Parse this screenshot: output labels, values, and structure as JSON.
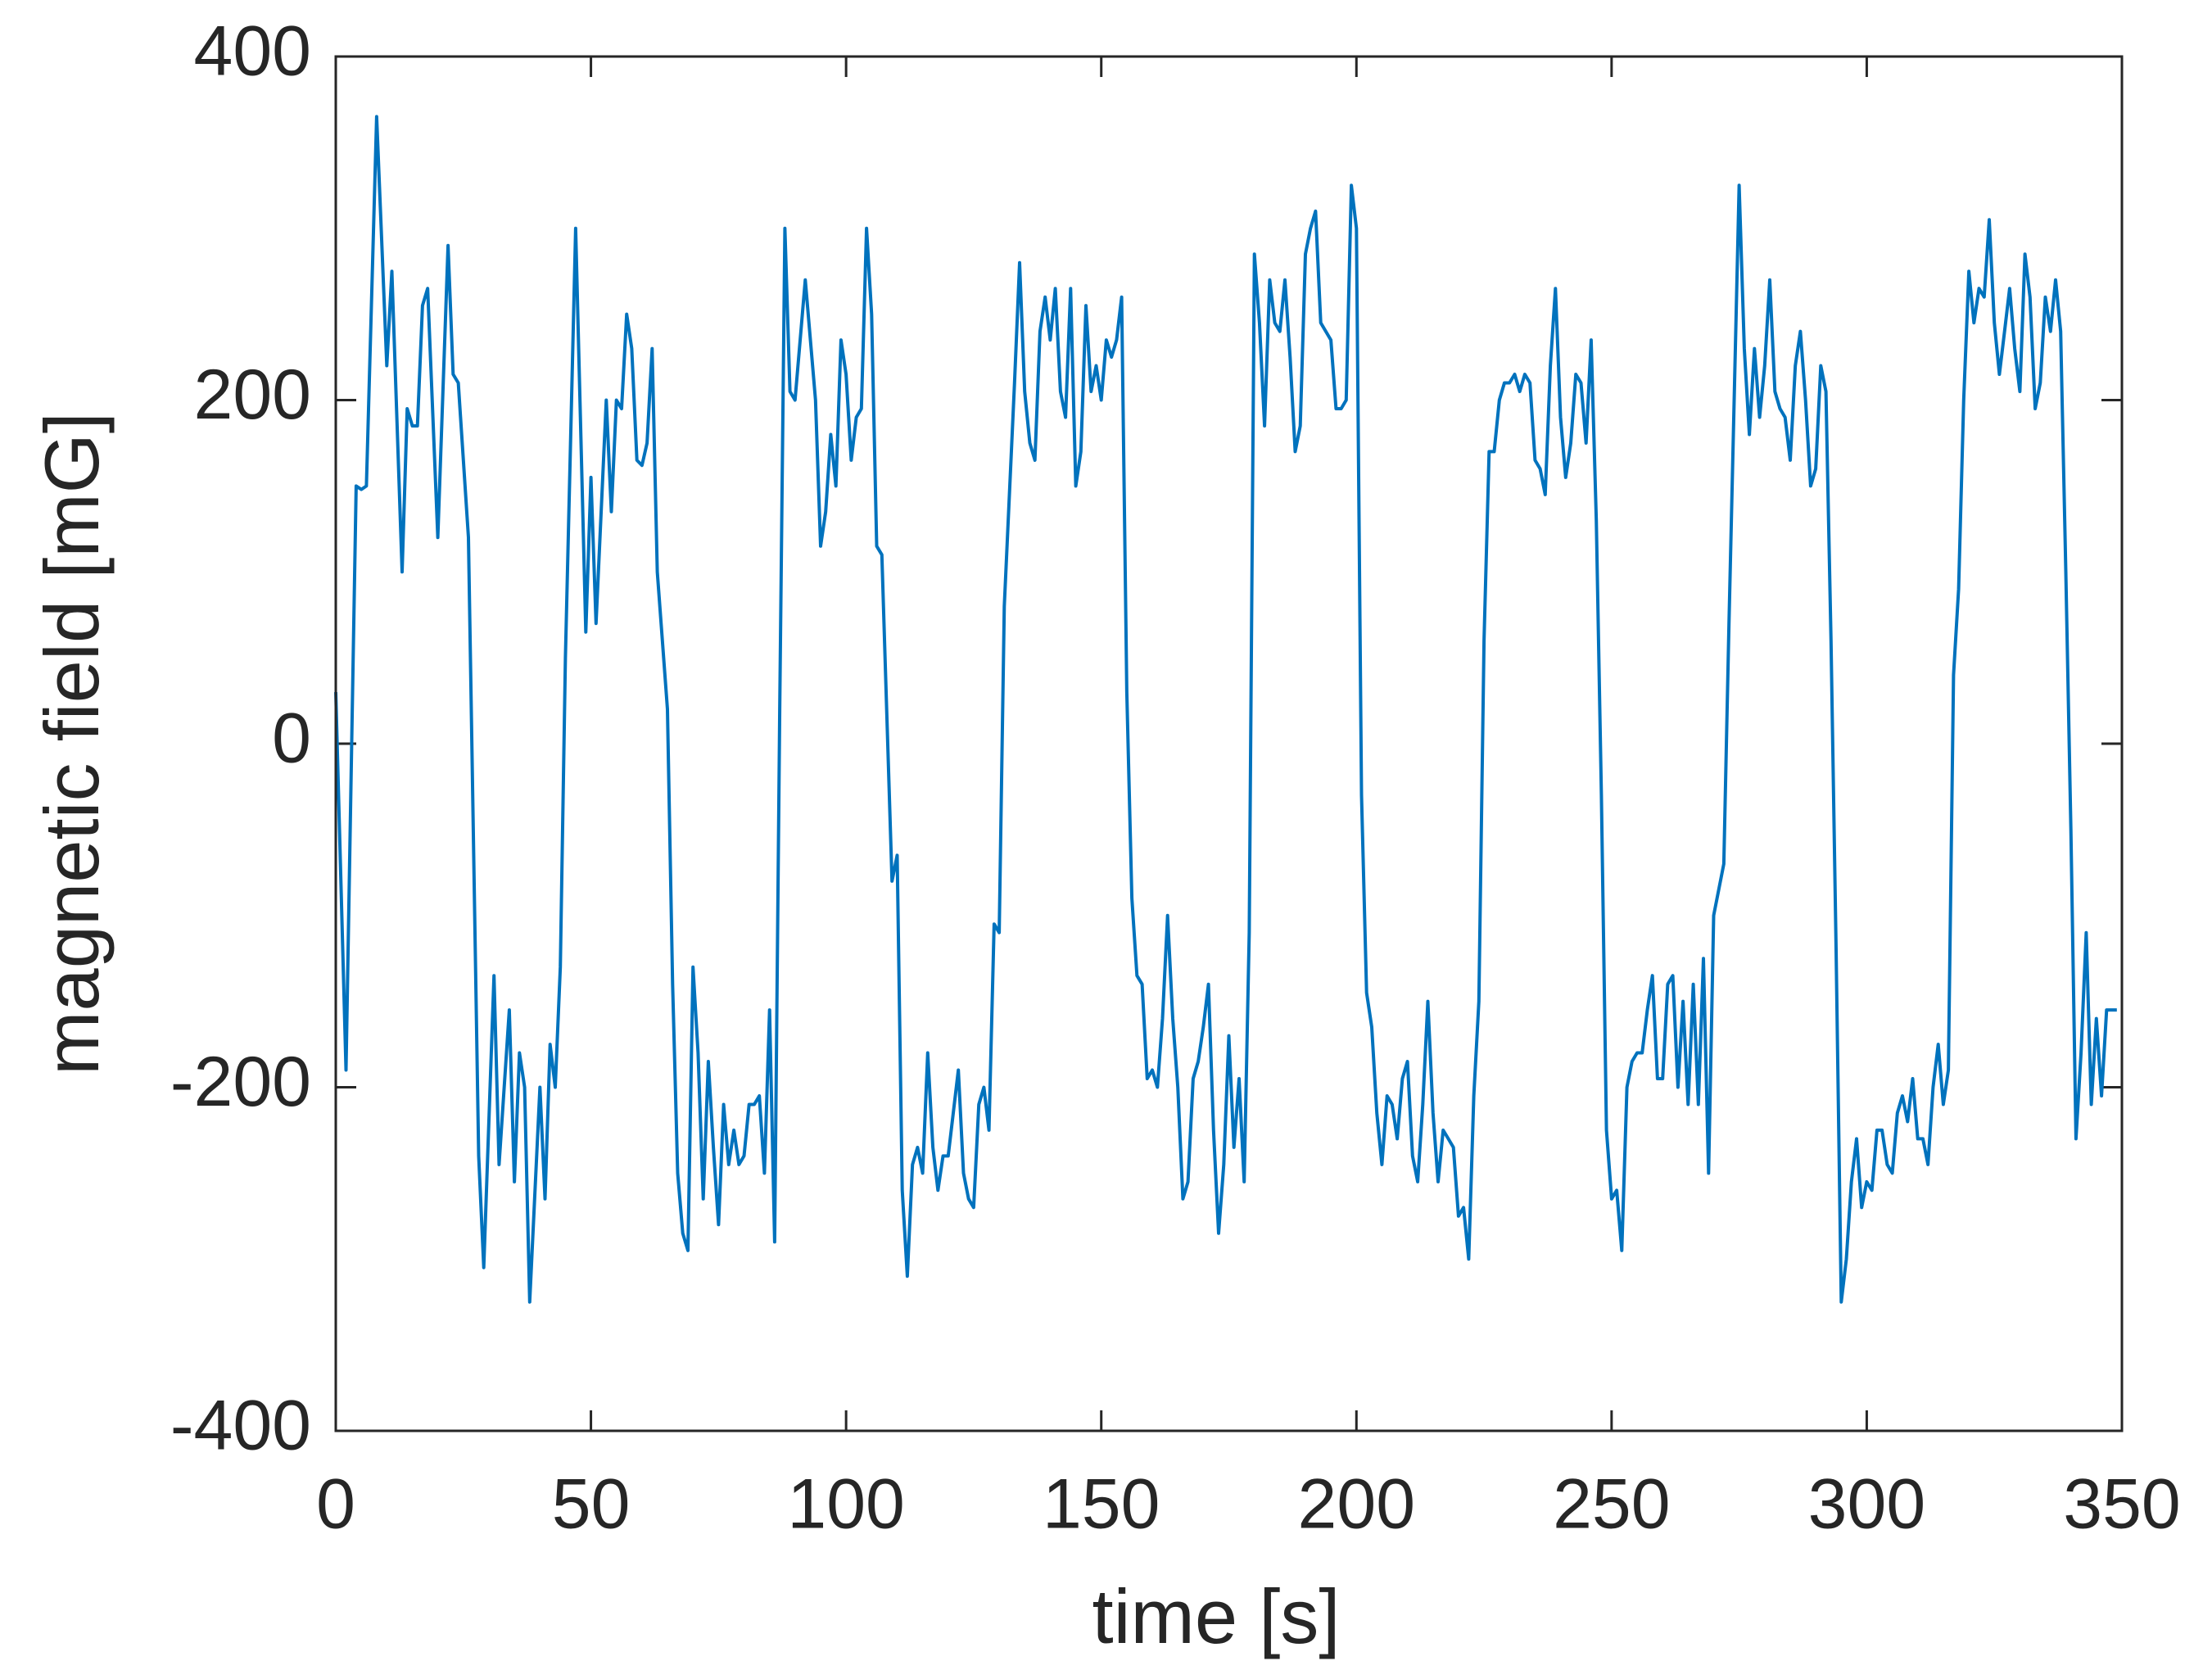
{
  "chart_data": {
    "type": "line",
    "xlabel": "time [s]",
    "ylabel": "magnetic field [mG]",
    "color": "#0072bd",
    "xlim": [
      0,
      350
    ],
    "ylim": [
      -400,
      400
    ],
    "xticks": [
      0,
      50,
      100,
      150,
      200,
      250,
      300,
      350
    ],
    "yticks": [
      -400,
      -200,
      0,
      200,
      400
    ],
    "x": [
      0,
      2,
      4,
      5,
      6,
      8,
      10,
      11,
      13,
      14,
      15,
      16,
      17,
      18,
      20,
      22,
      23,
      24,
      26,
      28,
      29,
      31,
      32,
      34,
      35,
      36,
      37,
      38,
      40,
      41,
      42,
      43,
      44,
      45,
      47,
      49,
      50,
      51,
      53,
      54,
      55,
      56,
      57,
      58,
      59,
      60,
      61,
      62,
      63,
      65,
      66,
      67,
      68,
      69,
      70,
      71,
      72,
      73,
      74,
      75,
      76,
      77,
      78,
      79,
      80,
      81,
      82,
      83,
      84,
      85,
      86,
      87,
      88,
      89,
      90,
      92,
      94,
      95,
      96,
      97,
      98,
      99,
      100,
      101,
      102,
      103,
      104,
      105,
      106,
      107,
      109,
      110,
      111,
      112,
      113,
      114,
      115,
      116,
      117,
      118,
      119,
      120,
      121,
      122,
      123,
      124,
      125,
      126,
      127,
      128,
      129,
      130,
      131,
      133,
      134,
      135,
      136,
      137,
      138,
      139,
      140,
      141,
      142,
      143,
      144,
      145,
      146,
      147,
      148,
      149,
      150,
      151,
      152,
      153,
      154,
      155,
      156,
      157,
      158,
      159,
      160,
      161,
      162,
      163,
      164,
      165,
      166,
      167,
      168,
      169,
      170,
      171,
      172,
      173,
      174,
      175,
      176,
      177,
      178,
      179,
      180,
      181,
      182,
      183,
      184,
      185,
      186,
      187,
      188,
      189,
      190,
      191,
      192,
      193,
      194,
      195,
      196,
      197,
      198,
      199,
      200,
      201,
      202,
      203,
      204,
      205,
      206,
      207,
      208,
      209,
      210,
      211,
      212,
      213,
      214,
      215,
      216,
      217,
      218,
      219,
      220,
      221,
      222,
      223,
      224,
      225,
      226,
      227,
      228,
      229,
      230,
      231,
      232,
      233,
      234,
      235,
      236,
      237,
      238,
      239,
      240,
      241,
      242,
      243,
      244,
      245,
      246,
      247,
      248,
      249,
      250,
      251,
      252,
      253,
      254,
      255,
      256,
      257,
      258,
      259,
      260,
      261,
      262,
      263,
      264,
      265,
      266,
      267,
      268,
      269,
      270,
      271,
      272,
      273,
      275,
      276,
      277,
      278,
      279,
      280,
      281,
      282,
      283,
      284,
      285,
      286,
      287,
      288,
      289,
      290,
      291,
      292,
      293,
      294,
      295,
      296,
      297,
      298,
      299,
      300,
      301,
      302,
      303,
      304,
      305,
      306,
      307,
      308,
      309,
      310,
      311,
      312,
      313,
      314,
      315,
      316,
      317,
      318,
      319,
      320,
      321,
      322,
      323,
      324,
      325,
      326,
      327,
      328,
      329,
      330,
      331,
      332,
      333,
      334,
      335,
      336,
      337,
      338,
      339,
      340,
      341,
      342,
      343,
      344,
      345,
      346,
      347,
      349
    ],
    "values": [
      30,
      -190,
      150,
      148,
      150,
      365,
      220,
      275,
      100,
      195,
      185,
      185,
      255,
      265,
      120,
      290,
      215,
      210,
      120,
      -240,
      -305,
      -135,
      -245,
      -155,
      -255,
      -180,
      -200,
      -325,
      -200,
      -265,
      -175,
      -200,
      -130,
      50,
      300,
      65,
      155,
      70,
      200,
      135,
      200,
      195,
      250,
      230,
      165,
      162,
      175,
      230,
      100,
      20,
      -140,
      -250,
      -285,
      -295,
      -130,
      -180,
      -265,
      -185,
      -235,
      -280,
      -210,
      -245,
      -225,
      -245,
      -240,
      -210,
      -210,
      -205,
      -250,
      -155,
      -290,
      20,
      300,
      205,
      200,
      270,
      200,
      115,
      135,
      180,
      150,
      235,
      215,
      165,
      190,
      195,
      300,
      250,
      115,
      110,
      -80,
      -65,
      -260,
      -310,
      -245,
      -235,
      -250,
      -180,
      -235,
      -260,
      -240,
      -240,
      -215,
      -190,
      -250,
      -265,
      -270,
      -210,
      -200,
      -225,
      -105,
      -110,
      80,
      210,
      280,
      205,
      175,
      165,
      240,
      260,
      235,
      265,
      205,
      190,
      265,
      150,
      170,
      255,
      205,
      220,
      200,
      235,
      225,
      235,
      260,
      30,
      -90,
      -135,
      -140,
      -195,
      -190,
      -200,
      -160,
      -100,
      -160,
      -200,
      -265,
      -255,
      -195,
      -185,
      -165,
      -140,
      -225,
      -285,
      -245,
      -170,
      -235,
      -195,
      -255,
      -110,
      285,
      245,
      185,
      270,
      245,
      240,
      270,
      225,
      170,
      185,
      285,
      300,
      310,
      245,
      240,
      235,
      195,
      195,
      200,
      325,
      300,
      -30,
      -145,
      -165,
      -215,
      -245,
      -205,
      -210,
      -230,
      -195,
      -185,
      -240,
      -255,
      -210,
      -150,
      -215,
      -255,
      -225,
      -230,
      -235,
      -275,
      -270,
      -300,
      -205,
      -150,
      60,
      170,
      170,
      200,
      210,
      210,
      215,
      205,
      215,
      210,
      165,
      160,
      145,
      220,
      265,
      190,
      155,
      175,
      215,
      210,
      175,
      235,
      130,
      -30,
      -225,
      -265,
      -260,
      -295,
      -200,
      -185,
      -180,
      -180,
      -155,
      -135,
      -195,
      -195,
      -140,
      -135,
      -200,
      -150,
      -210,
      -140,
      -210,
      -125,
      -250,
      -100,
      -85,
      -70,
      70,
      325,
      230,
      180,
      230,
      190,
      220,
      270,
      205,
      195,
      190,
      165,
      220,
      240,
      200,
      150,
      160,
      220,
      205,
      60,
      -120,
      -325,
      -300,
      -255,
      -230,
      -270,
      -255,
      -260,
      -225,
      -225,
      -245,
      -250,
      -215,
      -205,
      -220,
      -195,
      -230,
      -230,
      -245,
      -200,
      -175,
      -210,
      -190,
      40,
      90,
      200,
      275,
      245,
      265,
      260,
      305,
      245,
      215,
      240,
      265,
      230,
      205,
      285,
      260,
      195,
      210,
      260,
      240,
      270,
      240,
      100,
      -50,
      -230,
      -180,
      -110,
      -210,
      -160,
      -205,
      -155,
      -155
    ]
  }
}
